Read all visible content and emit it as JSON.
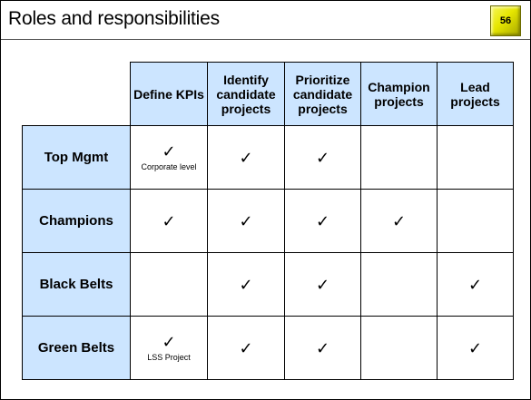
{
  "header": {
    "title": "Roles and responsibilities",
    "page_number": "56"
  },
  "table": {
    "columns": [
      "Define KPIs",
      "Identify candidate projects",
      "Prioritize candidate projects",
      "Champion projects",
      "Lead projects"
    ],
    "check_symbol": "✓",
    "rows": [
      {
        "role": "Top Mgmt",
        "cells": [
          {
            "check": true,
            "note": "Corporate level"
          },
          {
            "check": true,
            "note": ""
          },
          {
            "check": true,
            "note": ""
          },
          {
            "check": false,
            "note": ""
          },
          {
            "check": false,
            "note": ""
          }
        ]
      },
      {
        "role": "Champions",
        "cells": [
          {
            "check": true,
            "note": ""
          },
          {
            "check": true,
            "note": ""
          },
          {
            "check": true,
            "note": ""
          },
          {
            "check": true,
            "note": ""
          },
          {
            "check": false,
            "note": ""
          }
        ]
      },
      {
        "role": "Black Belts",
        "cells": [
          {
            "check": false,
            "note": ""
          },
          {
            "check": true,
            "note": ""
          },
          {
            "check": true,
            "note": ""
          },
          {
            "check": false,
            "note": ""
          },
          {
            "check": true,
            "note": ""
          }
        ]
      },
      {
        "role": "Green Belts",
        "cells": [
          {
            "check": true,
            "note": "LSS Project"
          },
          {
            "check": true,
            "note": ""
          },
          {
            "check": true,
            "note": ""
          },
          {
            "check": false,
            "note": ""
          },
          {
            "check": true,
            "note": ""
          }
        ]
      }
    ]
  }
}
